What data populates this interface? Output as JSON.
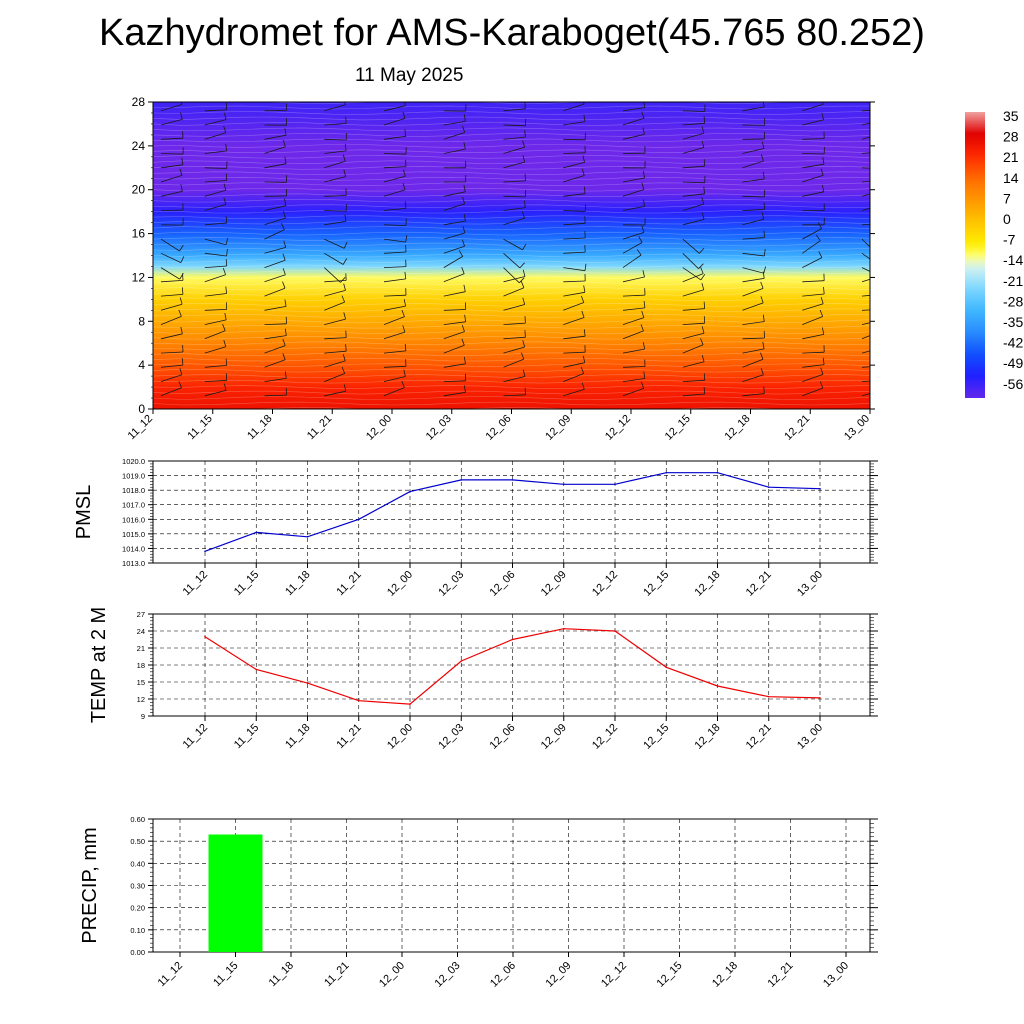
{
  "title": "Kazhydromet for AMS-Karaboget(45.765 80.252)",
  "subtitle": "11 May 2025",
  "time_labels": [
    "11_12",
    "11_15",
    "11_18",
    "11_21",
    "12_00",
    "12_03",
    "12_06",
    "12_09",
    "12_12",
    "12_15",
    "12_18",
    "12_21",
    "13_00"
  ],
  "colors": {
    "pmsl_line": "#0000cc",
    "temp_line": "#ee0000",
    "precip_bar": "#00ff00",
    "grid": "#000000"
  },
  "chart_data": [
    {
      "type": "heatmap",
      "title": "Kazhydromet for AMS-Karaboget(45.765 80.252)",
      "subtitle": "11 May 2025",
      "x": [
        "11_12",
        "11_15",
        "11_18",
        "11_21",
        "12_00",
        "12_03",
        "12_06",
        "12_09",
        "12_12",
        "12_15",
        "12_18",
        "12_21",
        "13_00"
      ],
      "ylim": [
        0,
        28
      ],
      "yticks": [
        "0",
        "4",
        "8",
        "12",
        "16",
        "20",
        "24",
        "28"
      ],
      "colorbar_labels": [
        "35",
        "28",
        "21",
        "14",
        "7",
        "0",
        "-7",
        "-14",
        "-21",
        "-28",
        "-35",
        "-42",
        "-49",
        "-56"
      ],
      "colorbar_range": [
        -56,
        35
      ],
      "temperature_profile": [
        {
          "level": 0,
          "value": 25
        },
        {
          "level": 2,
          "value": 22
        },
        {
          "level": 4,
          "value": 16
        },
        {
          "level": 6,
          "value": 10
        },
        {
          "level": 8,
          "value": 4
        },
        {
          "level": 10,
          "value": -2
        },
        {
          "level": 12,
          "value": -10
        },
        {
          "level": 13,
          "value": -21
        },
        {
          "level": 14,
          "value": -30
        },
        {
          "level": 16,
          "value": -40
        },
        {
          "level": 18,
          "value": -50
        },
        {
          "level": 20,
          "value": -57
        },
        {
          "level": 24,
          "value": -57
        },
        {
          "level": 28,
          "value": -52
        }
      ],
      "has_wind_barbs": true
    },
    {
      "type": "line",
      "ylabel": "PMSL",
      "x": [
        "11_12",
        "11_15",
        "11_18",
        "11_21",
        "12_00",
        "12_03",
        "12_06",
        "12_09",
        "12_12",
        "12_15",
        "12_18",
        "12_21",
        "13_00"
      ],
      "ylim": [
        1013,
        1020
      ],
      "yticks": [
        "1013.0",
        "1014.0",
        "1015.0",
        "1016.0",
        "1017.0",
        "1018.0",
        "1019.0",
        "1020.0"
      ],
      "series": [
        {
          "values": [
            1013.8,
            1015.1,
            1014.8,
            1016.0,
            1017.9,
            1018.7,
            1018.7,
            1018.4,
            1018.4,
            1019.2,
            1019.2,
            1018.2,
            1018.1
          ]
        }
      ],
      "grid": true
    },
    {
      "type": "line",
      "ylabel": "TEMP at 2 M",
      "x": [
        "11_12",
        "11_15",
        "11_18",
        "11_21",
        "12_00",
        "12_03",
        "12_06",
        "12_09",
        "12_12",
        "12_15",
        "12_18",
        "12_21",
        "13_00"
      ],
      "ylim": [
        9,
        27
      ],
      "yticks": [
        "9",
        "12",
        "15",
        "18",
        "21",
        "24",
        "27"
      ],
      "series": [
        {
          "values": [
            23.0,
            17.2,
            14.8,
            11.7,
            11.1,
            18.7,
            22.5,
            24.4,
            24.0,
            17.6,
            14.3,
            12.4,
            12.2
          ]
        }
      ],
      "grid": true
    },
    {
      "type": "bar",
      "ylabel": "PRECIP, mm",
      "categories": [
        "11_12",
        "11_15",
        "11_18",
        "11_21",
        "12_00",
        "12_03",
        "12_06",
        "12_09",
        "12_12",
        "12_15",
        "12_18",
        "12_21",
        "13_00"
      ],
      "values": [
        0.0,
        0.53,
        0.0,
        0.0,
        0.0,
        0.0,
        0.0,
        0.0,
        0.0,
        0.0,
        0.0,
        0.0,
        0.0
      ],
      "ylim": [
        0,
        0.6
      ],
      "yticks": [
        "0.00",
        "0.10",
        "0.20",
        "0.30",
        "0.40",
        "0.50",
        "0.60"
      ],
      "grid": true
    }
  ]
}
